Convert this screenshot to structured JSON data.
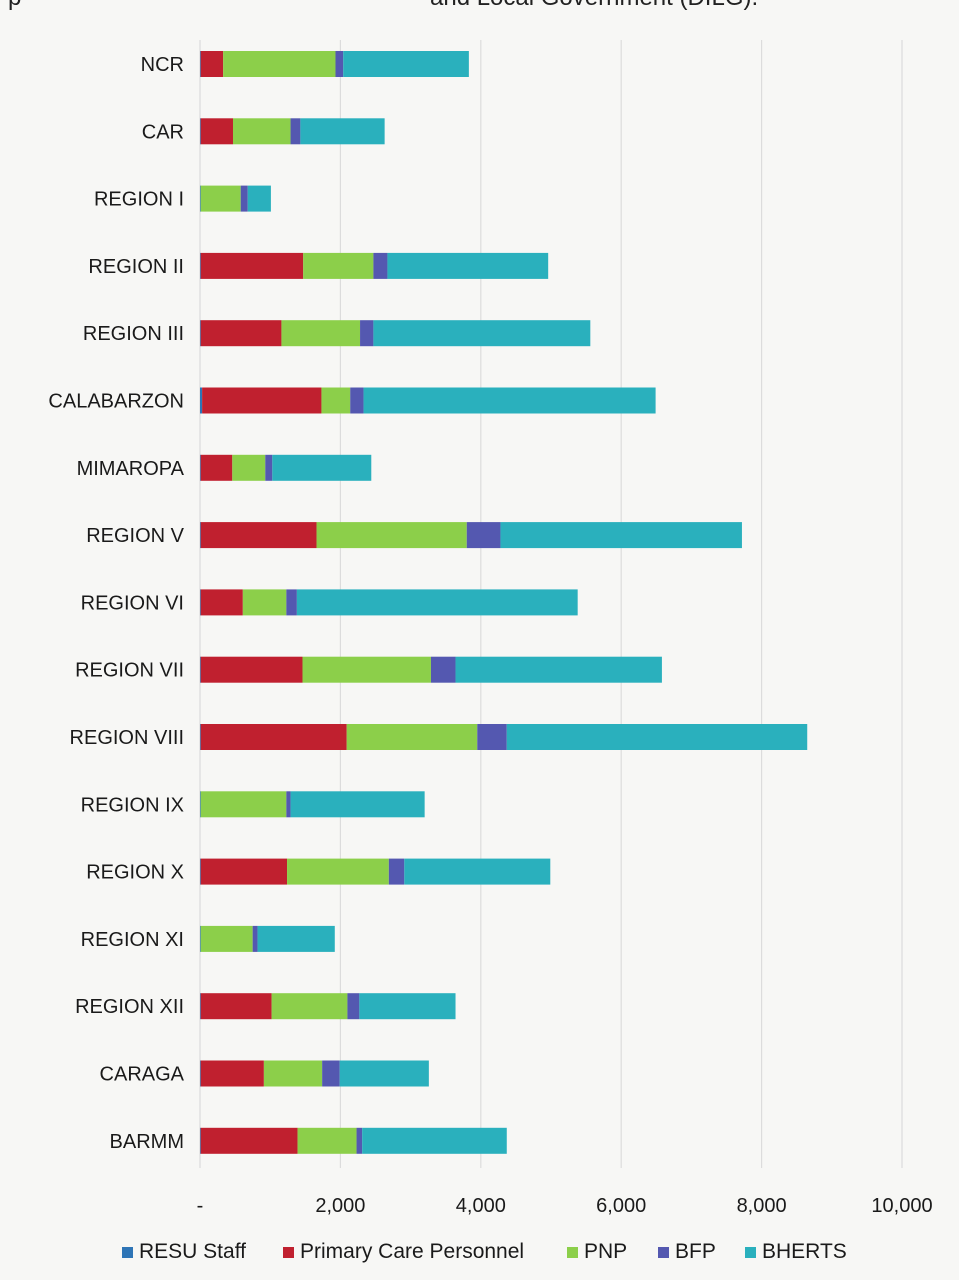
{
  "header": {
    "text_left": "p",
    "text_right": "and Local Government (DILG)."
  },
  "chart_data": {
    "type": "bar",
    "orientation": "horizontal",
    "stacked": true,
    "categories": [
      "NCR",
      "CAR",
      "REGION I",
      "REGION II",
      "REGION III",
      "CALABARZON",
      "MIMAROPA",
      "REGION V",
      "REGION VI",
      "REGION VII",
      "REGION VIII",
      "REGION IX",
      "REGION X",
      "REGION XI",
      "REGION XII",
      "CARAGA",
      "BARMM"
    ],
    "series": [
      {
        "name": "RESU Staff",
        "color": "#2e75b6",
        "values": [
          10,
          10,
          10,
          10,
          10,
          30,
          10,
          10,
          10,
          10,
          10,
          10,
          10,
          10,
          10,
          10,
          10
        ]
      },
      {
        "name": "Primary Care Personnel",
        "color": "#c0202f",
        "values": [
          320,
          460,
          0,
          1460,
          1150,
          1700,
          450,
          1650,
          600,
          1450,
          2080,
          0,
          1230,
          0,
          1010,
          900,
          1380
        ]
      },
      {
        "name": "PNP",
        "color": "#8ccf4a",
        "values": [
          1600,
          820,
          570,
          1000,
          1120,
          410,
          470,
          2140,
          620,
          1830,
          1860,
          1220,
          1450,
          740,
          1080,
          830,
          840
        ]
      },
      {
        "name": "BFP",
        "color": "#5458b0",
        "values": [
          110,
          140,
          100,
          200,
          190,
          190,
          100,
          480,
          150,
          350,
          420,
          60,
          220,
          70,
          170,
          250,
          80
        ]
      },
      {
        "name": "BHERTS",
        "color": "#2ab0bd",
        "values": [
          1790,
          1200,
          330,
          2290,
          3090,
          4160,
          1410,
          3440,
          4000,
          2940,
          4280,
          1910,
          2080,
          1100,
          1370,
          1270,
          2060
        ]
      }
    ],
    "xlim": [
      0,
      10000
    ],
    "xticks": [
      0,
      2000,
      4000,
      6000,
      8000,
      10000
    ],
    "xtick_labels": [
      "-",
      "2,000",
      "4,000",
      "6,000",
      "8,000",
      "10,000"
    ],
    "grid": true,
    "legend_position": "bottom"
  }
}
